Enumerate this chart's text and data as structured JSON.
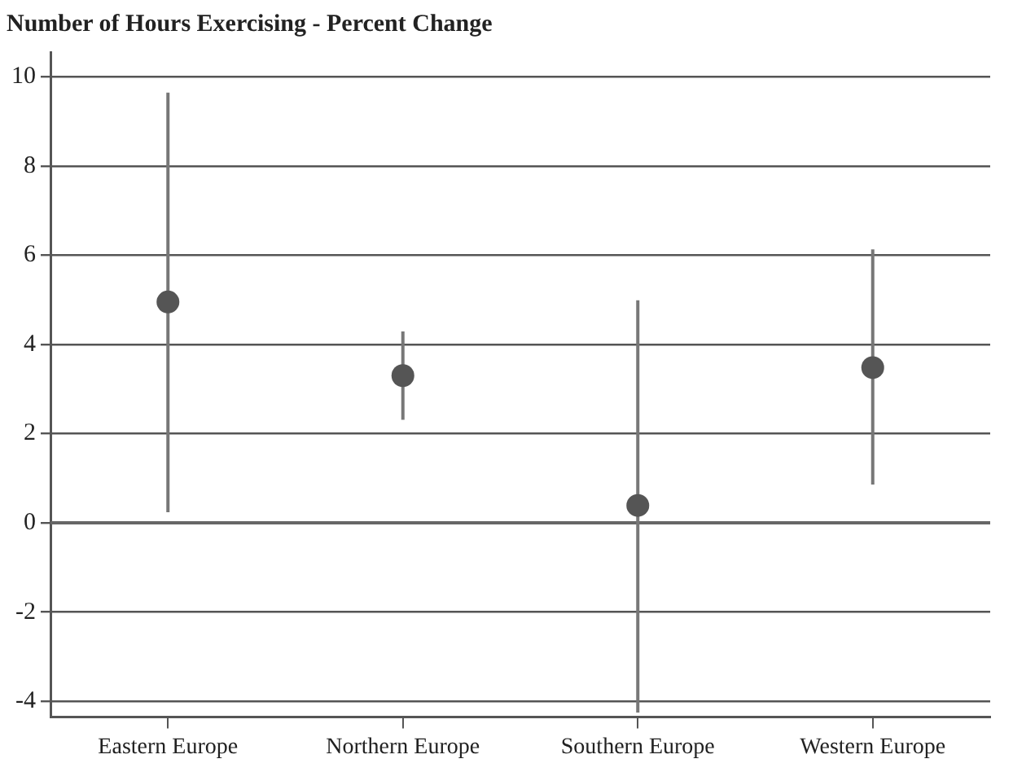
{
  "chart_data": {
    "type": "scatter",
    "title": "Number of Hours Exercising - Percent Change",
    "categories": [
      "Eastern Europe",
      "Northern Europe",
      "Southern Europe",
      "Western Europe"
    ],
    "series": [
      {
        "color": "#555555",
        "values": [
          4.95,
          3.3,
          0.39,
          3.48
        ],
        "errors": [
          [
            0.24,
            9.64
          ],
          [
            2.31,
            4.29
          ],
          [
            -4.25,
            4.99
          ],
          [
            0.86,
            6.13
          ]
        ]
      }
    ],
    "ylim": [
      -4.35,
      10.55
    ],
    "yticks": [
      -4,
      -2,
      0,
      2,
      4,
      6,
      8,
      10
    ],
    "ref_lines": [
      {
        "axis": "y",
        "value": 0,
        "color": "#666666"
      }
    ],
    "grid": "y",
    "legend": false,
    "marker": "circle"
  }
}
